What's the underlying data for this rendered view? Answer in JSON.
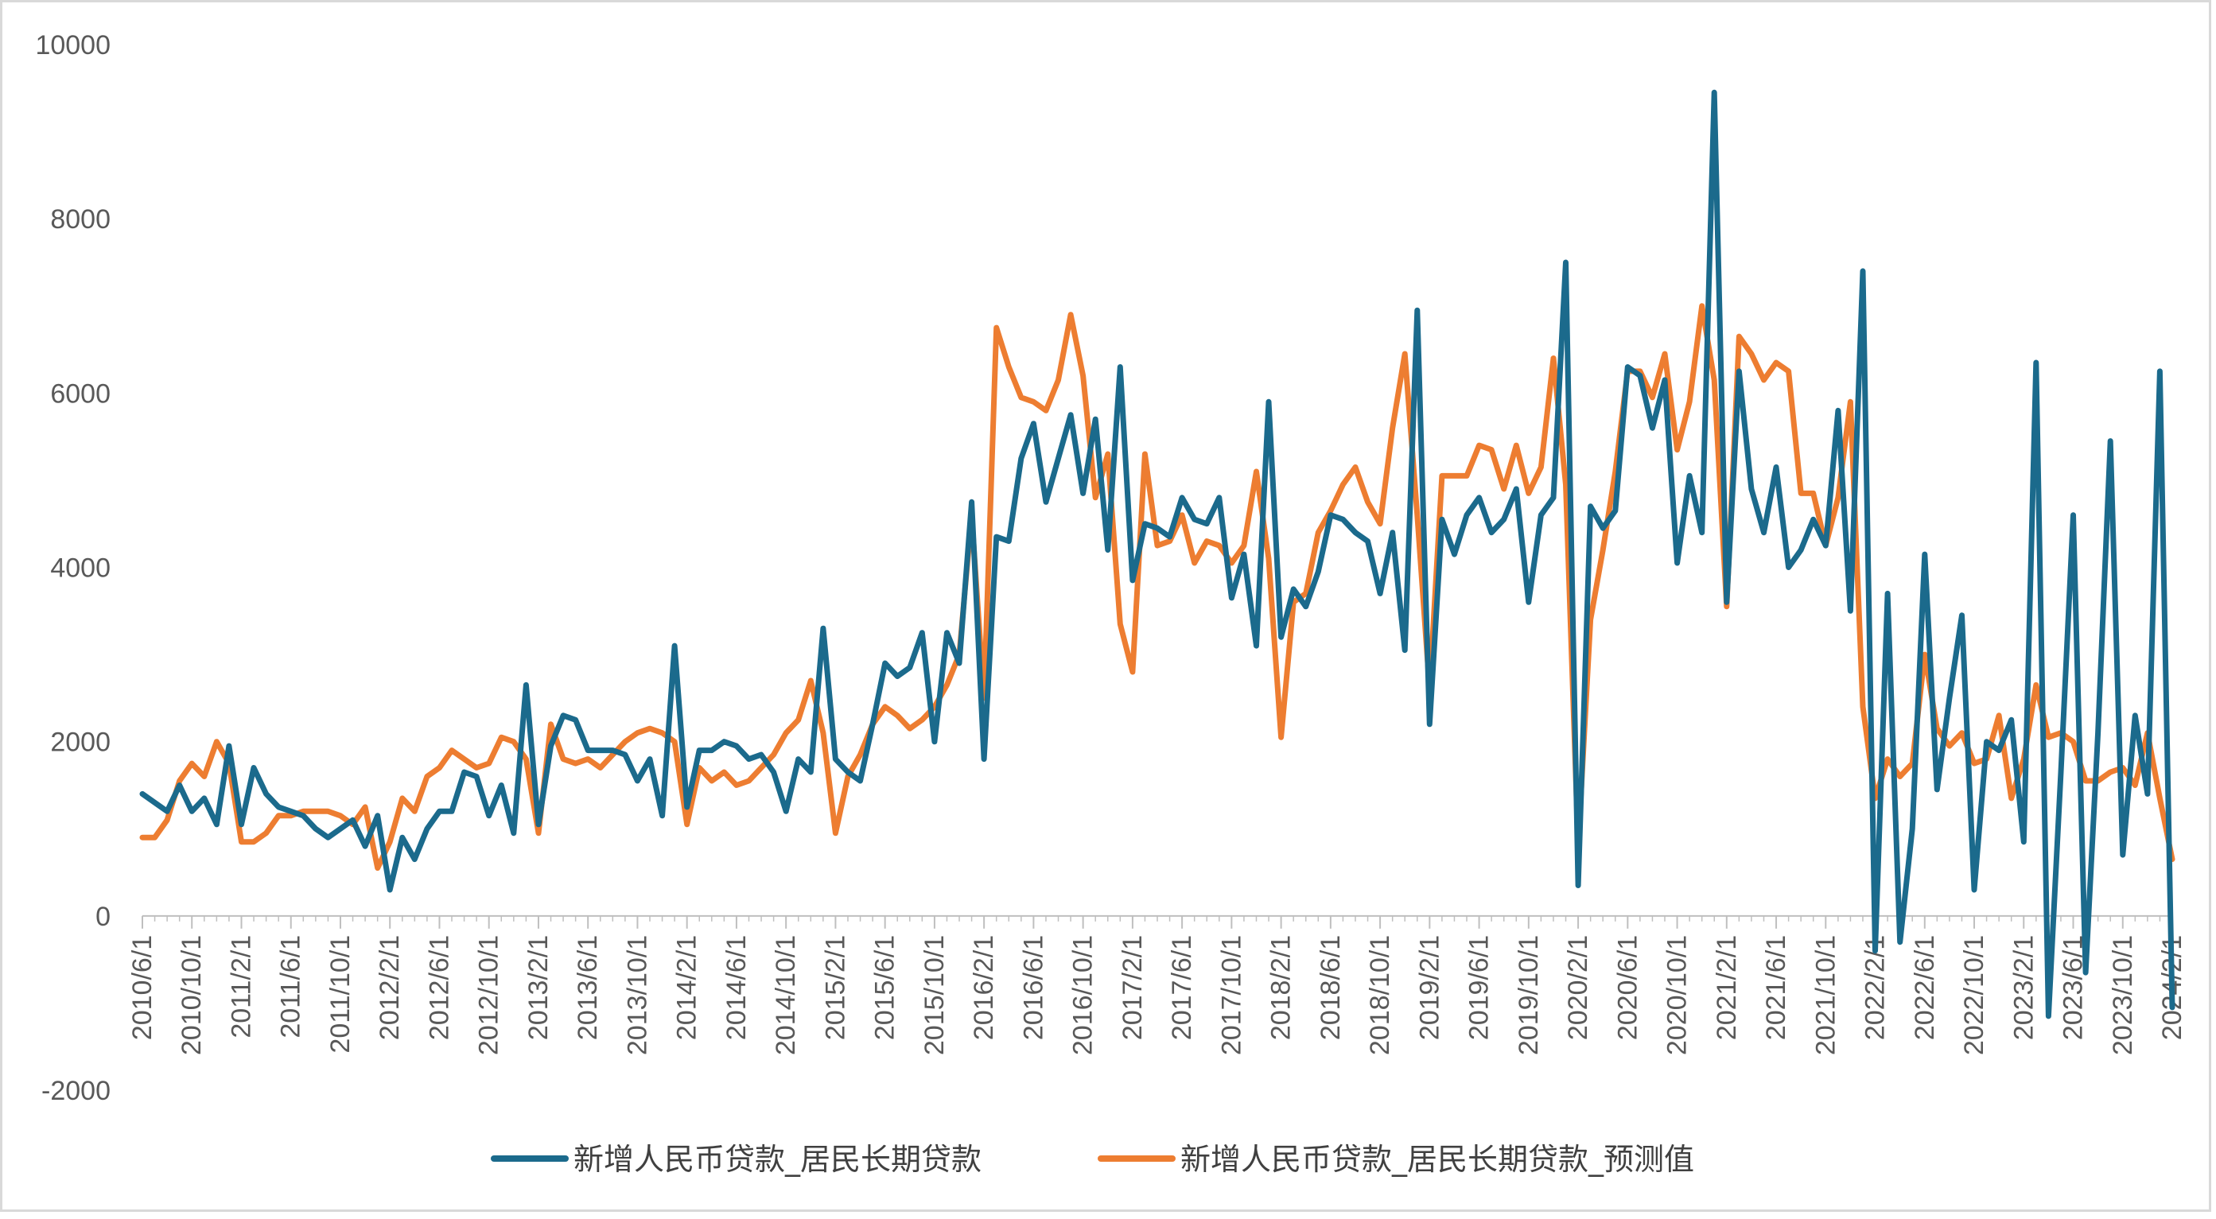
{
  "chart_data": {
    "type": "line",
    "title": "",
    "xlabel": "",
    "ylabel": "",
    "ylim": [
      -2000,
      10000
    ],
    "yticks": [
      10000,
      8000,
      6000,
      4000,
      2000,
      0,
      -2000
    ],
    "ytick_labels": [
      "10000",
      "8000",
      "6000",
      "4000",
      "2000",
      "0",
      "-2000"
    ],
    "xtick_labels": [
      "2010/6/1",
      "2010/10/1",
      "2011/2/1",
      "2011/6/1",
      "2011/10/1",
      "2012/2/1",
      "2012/6/1",
      "2012/10/1",
      "2013/2/1",
      "2013/6/1",
      "2013/10/1",
      "2014/2/1",
      "2014/6/1",
      "2014/10/1",
      "2015/2/1",
      "2015/6/1",
      "2015/10/1",
      "2016/2/1",
      "2016/6/1",
      "2016/10/1",
      "2017/2/1",
      "2017/6/1",
      "2017/10/1",
      "2018/2/1",
      "2018/6/1",
      "2018/10/1",
      "2019/2/1",
      "2019/6/1",
      "2019/10/1",
      "2020/2/1",
      "2020/6/1",
      "2020/10/1",
      "2021/2/1",
      "2021/6/1",
      "2021/10/1",
      "2022/2/1",
      "2022/6/1",
      "2022/10/1",
      "2023/2/1",
      "2023/6/1",
      "2023/10/1",
      "2024/2/1"
    ],
    "grid": false,
    "legend_position": "bottom",
    "series": [
      {
        "name": "新增人民币贷款_居民长期贷款",
        "color": "#1b6a8c",
        "values": [
          1400,
          1300,
          1200,
          1500,
          1200,
          1350,
          1050,
          1950,
          1050,
          1700,
          1400,
          1250,
          1200,
          1150,
          1000,
          900,
          1000,
          1100,
          800,
          1150,
          300,
          900,
          650,
          1000,
          1200,
          1200,
          1650,
          1600,
          1150,
          1500,
          950,
          2650,
          1050,
          1950,
          2300,
          2250,
          1900,
          1900,
          1900,
          1850,
          1550,
          1800,
          1150,
          3100,
          1250,
          1900,
          1900,
          2000,
          1950,
          1800,
          1850,
          1650,
          1200,
          1800,
          1650,
          3300,
          1800,
          1650,
          1550,
          2200,
          2900,
          2750,
          2850,
          3250,
          2000,
          3250,
          2900,
          4750,
          1800,
          4350,
          4300,
          5250,
          5650,
          4750,
          5250,
          5750,
          4850,
          5700,
          4200,
          6300,
          3850,
          4500,
          4450,
          4350,
          4800,
          4550,
          4500,
          4800,
          3650,
          4150,
          3100,
          5900,
          3200,
          3750,
          3550,
          3950,
          4600,
          4550,
          4400,
          4300,
          3700,
          4400,
          3050,
          6950,
          2200,
          4550,
          4150,
          4600,
          4800,
          4400,
          4550,
          4900,
          3600,
          4600,
          4800,
          7500,
          350,
          4700,
          4450,
          4650,
          6300,
          6200,
          5600,
          6150,
          4050,
          5050,
          4400,
          9450,
          3600,
          6250,
          4900,
          4400,
          5150,
          4000,
          4200,
          4550,
          4250,
          5800,
          3500,
          7400,
          -400,
          3700,
          -300,
          1000,
          4150,
          1450,
          2500,
          3450,
          300,
          2000,
          1900,
          2250,
          850,
          6350,
          -1150,
          1650,
          4600,
          -650,
          2100,
          5450,
          700,
          2300,
          1400,
          6250,
          -1050
        ]
      },
      {
        "name": "新增人民币贷款_居民长期贷款_预测值",
        "color": "#ed7d31",
        "values": [
          900,
          900,
          1100,
          1550,
          1750,
          1600,
          2000,
          1750,
          850,
          850,
          950,
          1150,
          1150,
          1200,
          1200,
          1200,
          1150,
          1050,
          1250,
          550,
          850,
          1350,
          1200,
          1600,
          1700,
          1900,
          1800,
          1700,
          1750,
          2050,
          2000,
          1800,
          950,
          2200,
          1800,
          1750,
          1800,
          1700,
          1850,
          2000,
          2100,
          2150,
          2100,
          2000,
          1050,
          1700,
          1550,
          1650,
          1500,
          1550,
          1700,
          1850,
          2100,
          2250,
          2700,
          2100,
          950,
          1600,
          1850,
          2200,
          2400,
          2300,
          2150,
          2250,
          2400,
          2650,
          3000,
          4600,
          2500,
          6750,
          6300,
          5950,
          5900,
          5800,
          6150,
          6900,
          6200,
          4800,
          5300,
          3350,
          2800,
          5300,
          4250,
          4300,
          4600,
          4050,
          4300,
          4250,
          4050,
          4250,
          5100,
          4100,
          2050,
          3600,
          3700,
          4400,
          4650,
          4950,
          5150,
          4750,
          4500,
          5600,
          6450,
          4600,
          2600,
          5050,
          5050,
          5050,
          5400,
          5350,
          4900,
          5400,
          4850,
          5150,
          6400,
          4950,
          800,
          3400,
          4200,
          5100,
          6250,
          6250,
          5950,
          6450,
          5350,
          5900,
          7000,
          6150,
          3550,
          6650,
          6450,
          6150,
          6350,
          6250,
          4850,
          4850,
          4250,
          4800,
          5900,
          2400,
          1350,
          1800,
          1600,
          1750,
          3000,
          2150,
          1950,
          2100,
          1750,
          1800,
          2300,
          1350,
          1800,
          2650,
          2050,
          2100,
          2000,
          1550,
          1550,
          1650,
          1700,
          1500,
          2100,
          1350,
          650
        ]
      }
    ]
  }
}
